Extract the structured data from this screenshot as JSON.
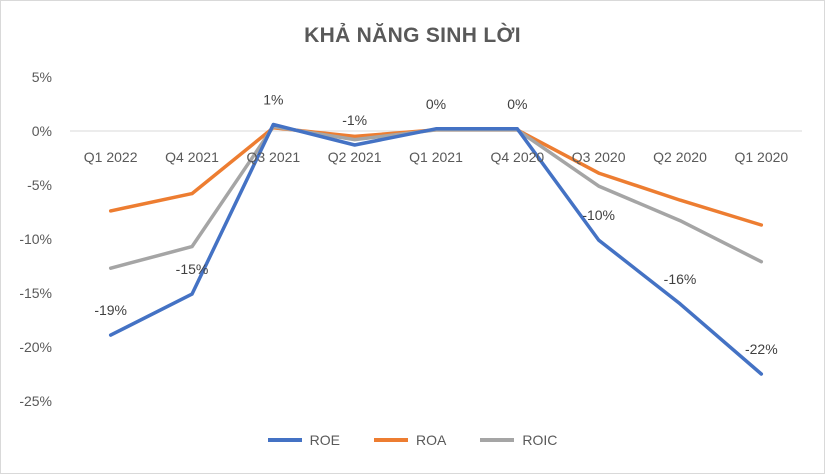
{
  "chart_data": {
    "type": "line",
    "title": "KHẢ NĂNG SINH LỜI",
    "categories": [
      "Q1 2022",
      "Q4 2021",
      "Q3 2021",
      "Q2 2021",
      "Q1 2021",
      "Q4 2020",
      "Q3 2020",
      "Q2 2020",
      "Q1 2020"
    ],
    "y_ticks": [
      "5%",
      "0%",
      "-5%",
      "-10%",
      "-15%",
      "-20%",
      "-25%"
    ],
    "ylim": [
      -25,
      5
    ],
    "grid": "zero-line only",
    "legend_position": "bottom",
    "series": [
      {
        "name": "ROE",
        "color": "#4472c4",
        "values": [
          -18.9,
          -15.1,
          0.6,
          -1.3,
          0.2,
          0.2,
          -10.1,
          -16.0,
          -22.5
        ],
        "data_labels": [
          "-19%",
          "-15%",
          "1%",
          "-1%",
          "0%",
          "0%",
          "-10%",
          "-16%",
          "-22%"
        ]
      },
      {
        "name": "ROA",
        "color": "#ed7d31",
        "values": [
          -7.4,
          -5.8,
          0.3,
          -0.5,
          0.1,
          0.1,
          -3.9,
          -6.4,
          -8.7
        ]
      },
      {
        "name": "ROIC",
        "color": "#a5a5a5",
        "values": [
          -12.7,
          -10.7,
          0.4,
          -0.8,
          0.1,
          0.1,
          -5.1,
          -8.3,
          -12.1
        ]
      }
    ]
  }
}
